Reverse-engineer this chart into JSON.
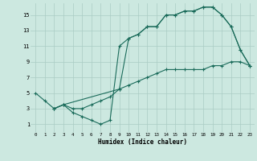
{
  "xlabel": "Humidex (Indice chaleur)",
  "bg_color": "#cce8e0",
  "grid_color": "#aaccc4",
  "line_color": "#1a6b5a",
  "xlim": [
    -0.5,
    23.5
  ],
  "ylim": [
    0,
    16.5
  ],
  "xticks": [
    0,
    1,
    2,
    3,
    4,
    5,
    6,
    7,
    8,
    9,
    10,
    11,
    12,
    13,
    14,
    15,
    16,
    17,
    18,
    19,
    20,
    21,
    22,
    23
  ],
  "yticks": [
    1,
    3,
    5,
    7,
    9,
    11,
    13,
    15
  ],
  "line1_x": [
    0,
    1,
    2,
    3,
    4,
    5,
    6,
    7,
    8,
    9,
    10,
    11,
    12,
    13,
    14,
    15,
    16,
    17,
    18,
    19,
    20,
    21,
    22,
    23
  ],
  "line1_y": [
    5,
    4,
    3,
    3.5,
    2.5,
    2,
    1.5,
    1,
    1.5,
    11,
    12,
    12.5,
    13.5,
    13.5,
    15,
    15,
    15.5,
    15.5,
    16,
    16,
    15,
    13.5,
    10.5,
    8.5
  ],
  "line2_x": [
    2,
    3,
    4,
    5,
    6,
    7,
    8,
    9,
    10,
    11,
    12,
    13,
    14,
    15,
    16,
    17,
    18,
    19,
    20,
    21,
    22,
    23
  ],
  "line2_y": [
    3,
    3.5,
    3,
    3,
    3.5,
    4,
    4.5,
    5.5,
    6,
    6.5,
    7,
    7.5,
    8,
    8,
    8,
    8,
    8,
    8.5,
    8.5,
    9,
    9,
    8.5
  ],
  "line3_x": [
    2,
    3,
    9,
    10,
    11,
    12,
    13,
    14,
    15,
    16,
    17,
    18,
    19,
    20,
    21,
    22,
    23
  ],
  "line3_y": [
    3,
    3.5,
    5.5,
    12,
    12.5,
    13.5,
    13.5,
    15,
    15,
    15.5,
    15.5,
    16,
    16,
    15,
    13.5,
    10.5,
    8.5
  ]
}
